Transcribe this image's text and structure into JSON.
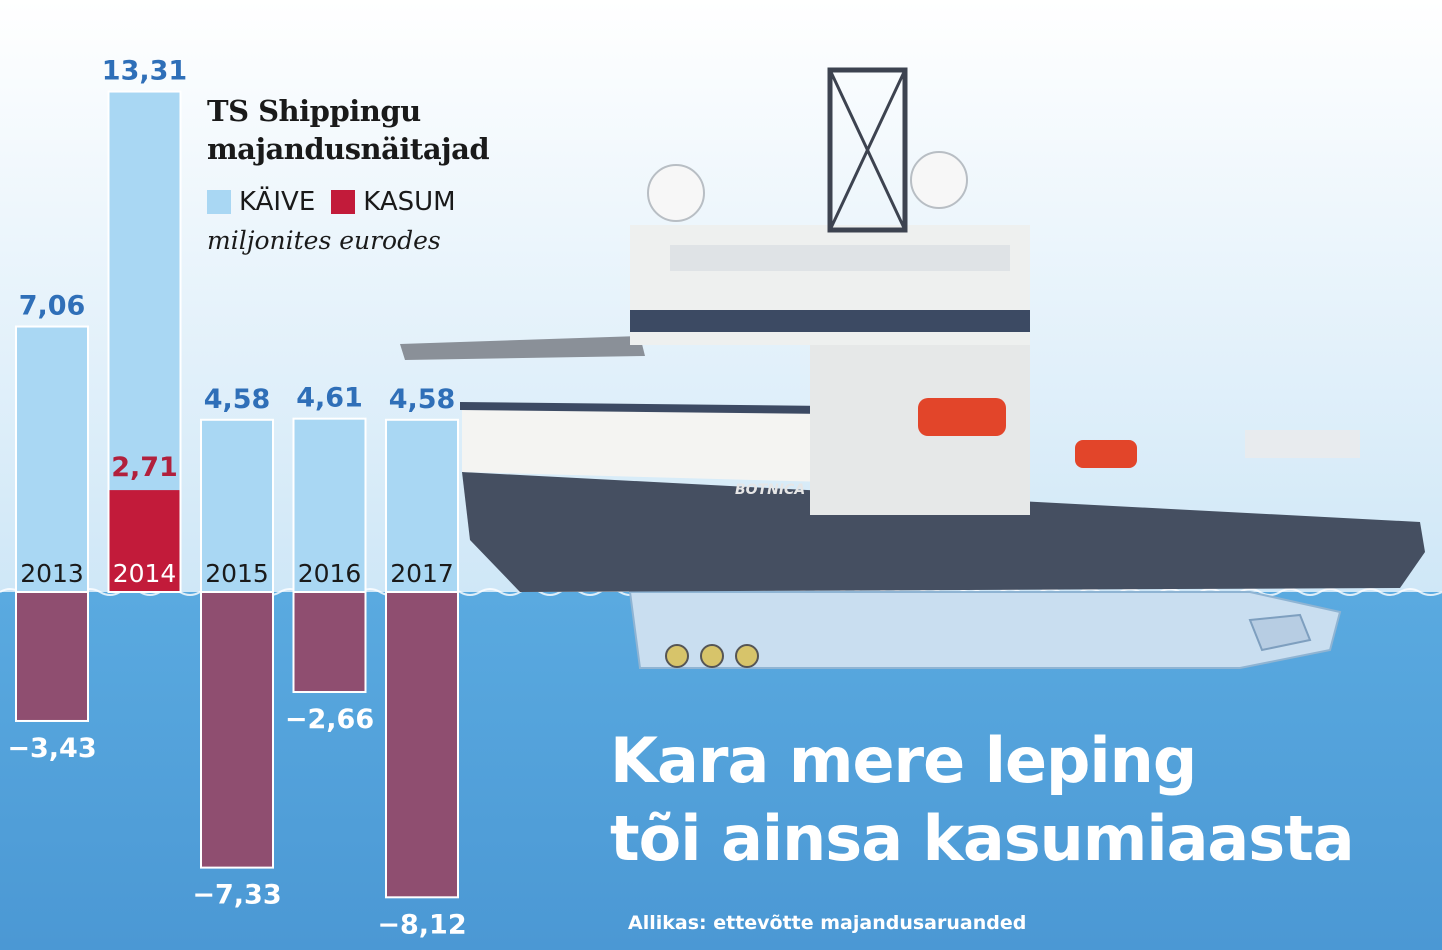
{
  "chart_data": {
    "type": "bar",
    "title": "TS Shippingu majandusnäitajad",
    "units": "miljonites eurodes",
    "categories": [
      "2013",
      "2014",
      "2015",
      "2016",
      "2017"
    ],
    "series": [
      {
        "name": "KÄIVE",
        "values": [
          7.06,
          13.31,
          4.58,
          4.61,
          4.58
        ],
        "labels": [
          "7,06",
          "13,31",
          "4,58",
          "4,61",
          "4,58"
        ],
        "color": "#a9d7f3"
      },
      {
        "name": "KASUM",
        "values": [
          -3.43,
          2.71,
          -7.33,
          -2.66,
          -8.12
        ],
        "labels": [
          "−3,43",
          "2,71",
          "−7,33",
          "−2,66",
          "−8,12"
        ],
        "color_positive": "#c21b3a",
        "color_negative": "#8f4e70"
      }
    ]
  },
  "colors": {
    "sky": "#e3f1fa",
    "sea": "#58a8df",
    "value_blue": "#2f6fb8",
    "value_red": "#b1203c"
  },
  "headline": {
    "line1": "Kara mere leping",
    "line2": "tõi ainsa kasumiaasta"
  },
  "source": "Allikas: ettevõtte majandusaruanded",
  "ship_name": "BOTNICA"
}
